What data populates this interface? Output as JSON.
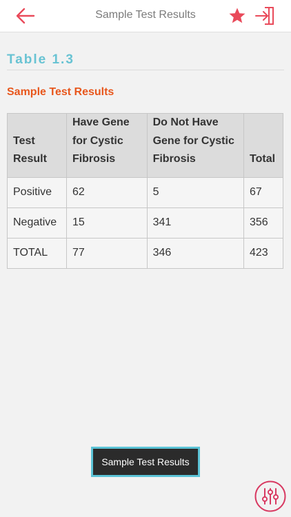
{
  "header": {
    "title": "Sample Test Results",
    "back_icon": "back-arrow-icon",
    "favorite_icon": "star-icon",
    "exit_icon": "exit-icon",
    "accent_color": "#e94a5a"
  },
  "section": {
    "heading": "Table 1.3",
    "heading_color": "#68c3d3"
  },
  "table": {
    "caption": "Sample Test Results",
    "caption_color": "#e8571d",
    "headers": {
      "col1_line1": "Test",
      "col1_line2": "Result",
      "col2_line1": "Have Gene",
      "col2_line2": "for Cystic",
      "col2_line3": "Fibrosis",
      "col3_line1": "Do Not Have",
      "col3_line2": "Gene for Cystic",
      "col3_line3": "Fibrosis",
      "col4": "Total"
    },
    "rows": [
      {
        "result": "Positive",
        "have_gene": "62",
        "no_gene": "5",
        "total": "67"
      },
      {
        "result": "Negative",
        "have_gene": "15",
        "no_gene": "341",
        "total": "356"
      },
      {
        "result": "TOTAL",
        "have_gene": "77",
        "no_gene": "346",
        "total": "423"
      }
    ]
  },
  "popup": {
    "label": "Sample Test Results",
    "border_color": "#5bc3d6"
  },
  "controls": {
    "icon": "sliders-icon"
  }
}
